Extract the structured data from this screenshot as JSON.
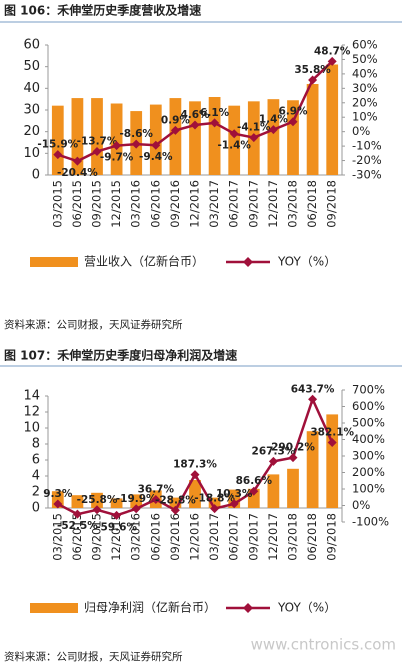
{
  "chart_data": [
    {
      "type": "bar",
      "title": "图 106：禾伸堂历史季度营收及增速",
      "source": "资料来源：公司财报，天风证券研究所",
      "categories": [
        "03/2015",
        "06/2015",
        "09/2015",
        "12/2015",
        "03/2016",
        "06/2016",
        "09/2016",
        "12/2016",
        "03/2017",
        "06/2017",
        "09/2017",
        "12/2017",
        "03/2018",
        "06/2018",
        "09/2018"
      ],
      "series": [
        {
          "name": "营业收入（亿新台币）",
          "color": "#f0901e",
          "values": [
            32,
            35.5,
            35.5,
            33,
            29.5,
            32.5,
            35.5,
            34,
            36,
            32,
            34,
            35,
            34.5,
            42,
            51
          ]
        },
        {
          "name": "YOY（%）",
          "color": "#a0103a",
          "axis": "y2",
          "values": [
            -15.9,
            -20.4,
            -13.7,
            -9.7,
            -8.6,
            -9.4,
            0.9,
            4.6,
            6.1,
            -1.4,
            -4.1,
            1.4,
            6.9,
            35.8,
            48.7
          ],
          "value_labels": [
            "-15.9%",
            "-20.4%",
            "-13.7%",
            "-9.7%",
            "-8.6%",
            "-9.4%",
            "0.9%",
            "4.6%",
            "6.1%",
            "-1.4%",
            "-4.1%",
            "1.4%",
            "6.9%",
            "35.8%",
            "48.7%"
          ]
        }
      ],
      "ylim": [
        0,
        60
      ],
      "yticks": [
        0,
        10,
        20,
        30,
        40,
        50,
        60
      ],
      "y2lim": [
        -30,
        60
      ],
      "y2ticks": [
        {
          "value": -30,
          "label": "-30%"
        },
        {
          "value": -20,
          "label": "-20%"
        },
        {
          "value": -10,
          "label": "-10%"
        },
        {
          "value": 0,
          "label": "0%"
        },
        {
          "value": 10,
          "label": "10%"
        },
        {
          "value": 20,
          "label": "20%"
        },
        {
          "value": 30,
          "label": "30%"
        },
        {
          "value": 40,
          "label": "40%"
        },
        {
          "value": 50,
          "label": "50%"
        },
        {
          "value": 60,
          "label": "60%"
        }
      ],
      "legend": "bottom"
    },
    {
      "type": "bar",
      "title": "图 107：禾伸堂历史季度归母净利润及增速",
      "source": "资料来源：公司财报，天风证券研究所",
      "watermark": "www.cntronics.com",
      "categories": [
        "03/2015",
        "06/2015",
        "09/2015",
        "12/2015",
        "03/2016",
        "06/2016",
        "09/2016",
        "12/2016",
        "03/2017",
        "06/2017",
        "09/2017",
        "12/2017",
        "03/2018",
        "06/2018",
        "09/2018"
      ],
      "series": [
        {
          "name": "归母净利润（亿新台币）",
          "color": "#f0901e",
          "values": [
            2.1,
            1.6,
            1.9,
            1.2,
            1.7,
            2.2,
            1.3,
            3.5,
            1.3,
            2.3,
            2.4,
            4.2,
            4.9,
            9.6,
            11.7
          ]
        },
        {
          "name": "YOY（%）",
          "color": "#a0103a",
          "axis": "y2",
          "values": [
            9.3,
            -52.5,
            -25.8,
            -59.6,
            -19.9,
            36.7,
            -28.8,
            187.3,
            -18.8,
            10.3,
            86.6,
            267.3,
            290.2,
            643.7,
            382.1
          ],
          "value_labels": [
            "9.3%",
            "-52.5%",
            "-25.8%",
            "-59.6%",
            "-19.9%",
            "36.7%",
            "-28.8%",
            "187.3%",
            "-18.8%",
            "10.3%",
            "86.6%",
            "267.3%",
            "290.2%",
            "643.7%",
            "382.1%"
          ]
        }
      ],
      "ylim": [
        0,
        14
      ],
      "yticks": [
        0,
        2,
        4,
        6,
        8,
        10,
        12,
        14
      ],
      "y2lim": [
        -100,
        700
      ],
      "y2ticks": [
        {
          "value": -100,
          "label": "-100%"
        },
        {
          "value": 0,
          "label": "0%"
        },
        {
          "value": 100,
          "label": "100%"
        },
        {
          "value": 200,
          "label": "200%"
        },
        {
          "value": 300,
          "label": "300%"
        },
        {
          "value": 400,
          "label": "400%"
        },
        {
          "value": 500,
          "label": "500%"
        },
        {
          "value": 600,
          "label": "600%"
        },
        {
          "value": 700,
          "label": "700%"
        }
      ],
      "legend": "bottom"
    }
  ]
}
